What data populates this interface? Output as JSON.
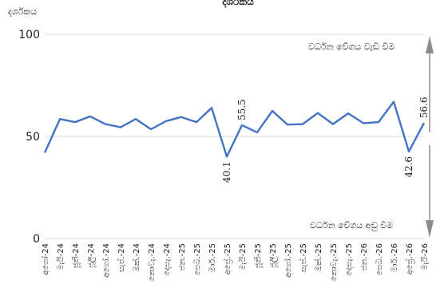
{
  "chart_data": {
    "type": "line",
    "title": "දර්ශකය",
    "ylabel": "දර්ශකය",
    "ylim": [
      0,
      100
    ],
    "yticks": [
      0,
      50,
      100
    ],
    "x": [
      "අගෝ-24",
      "මැයි-24",
      "ජූනි-24",
      "ජූලි-24",
      "අගෝ.-24",
      "සැප්.-24",
      "ඔක්.-24",
      "නොවැ.-24",
      "දෙසැ.-24",
      "ජන.-25",
      "පෙබ.-25",
      "මාර්.-25",
      "අප්‍රේ.-25",
      "මැයි-25",
      "ජූනි-25",
      "ජූලි-25",
      "අගෝ.-25",
      "සැප්.-25",
      "ඔක්.-25",
      "නොවැ.-25",
      "දෙසැ.-25",
      "ජන.-26",
      "පෙබ.-26",
      "මාර්.-26",
      "අප්‍රේ.-26",
      "මැයි-26"
    ],
    "series": [
      {
        "values": [
          42,
          58.5,
          57,
          59.8,
          56,
          54.5,
          58.5,
          53.5,
          57.5,
          59.5,
          57,
          64,
          40.1,
          55.5,
          52,
          62.5,
          55.8,
          56,
          61.5,
          56,
          61.3,
          56.5,
          57,
          67,
          42.6,
          56.6
        ]
      }
    ],
    "data_labels": [
      {
        "index": 12,
        "text": "40.1"
      },
      {
        "index": 13,
        "text": "55.5"
      },
      {
        "index": 24,
        "text": "42.6"
      },
      {
        "index": 25,
        "text": "56.6"
      }
    ],
    "annotations": {
      "upper": "වර්ධන වේගය වැඩි වීම",
      "lower": "වර්ධන වේගය අඩු වීම"
    },
    "colors": {
      "line": "#4472c4",
      "grid": "#d9d9d9",
      "arrow": "#8c8c8c"
    },
    "grid": true
  }
}
